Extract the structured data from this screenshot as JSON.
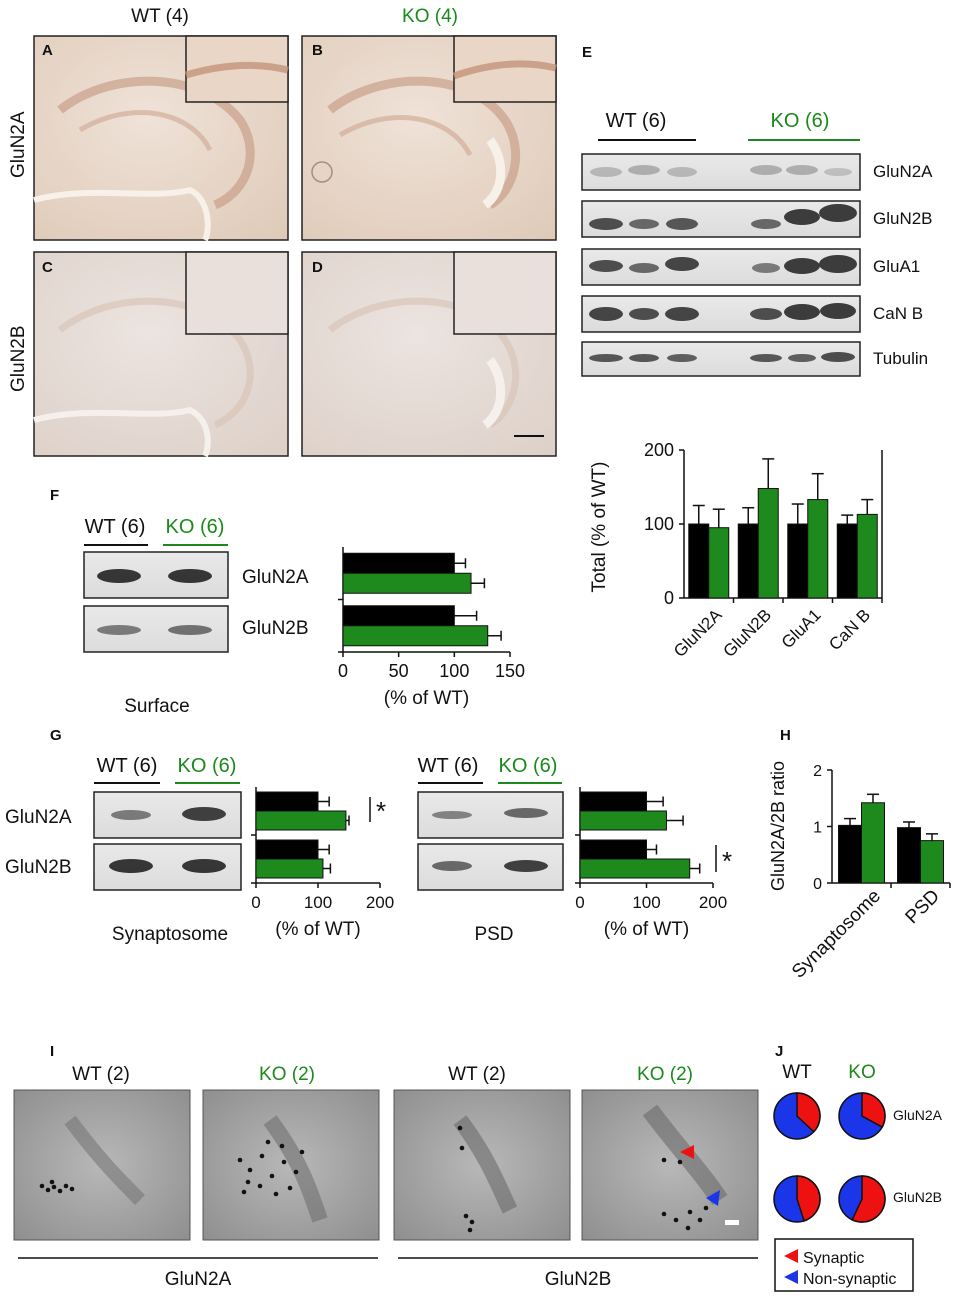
{
  "colors": {
    "wt": "#000000",
    "ko": "#1e8a1e",
    "synaptic": "#ee1111",
    "nonsynaptic": "#1a36e8",
    "tissue": "#ece0d6",
    "em": "#a8a8a8"
  },
  "panelA_D": {
    "wt_header": "WT (4)",
    "ko_header": "KO (4)",
    "row1": "GluN2A",
    "row2": "GluN2B",
    "letters": [
      "A",
      "B",
      "C",
      "D"
    ]
  },
  "panelE": {
    "letter": "E",
    "wt_header": "WT (6)",
    "ko_header": "KO (6)",
    "blots": [
      "GluN2A",
      "GluN2B",
      "GluA1",
      "CaN B",
      "Tubulin"
    ]
  },
  "panelF": {
    "letter": "F",
    "wt_header": "WT (6)",
    "ko_header": "KO (6)",
    "blots": [
      "GluN2A",
      "GluN2B"
    ],
    "caption": "Surface"
  },
  "panelG": {
    "letter": "G",
    "wt_header": "WT (6)",
    "ko_header": "KO (6)",
    "rows": [
      "GluN2A",
      "GluN2B"
    ],
    "caption_left": "Synaptosome",
    "caption_right": "PSD",
    "star": "*"
  },
  "panelH": {
    "letter": "H"
  },
  "panelI": {
    "letter": "I",
    "headers": [
      "WT (2)",
      "KO (2)",
      "WT (2)",
      "KO (2)"
    ],
    "group_left": "GluN2A",
    "group_right": "GluN2B"
  },
  "panelJ": {
    "letter": "J",
    "wt": "WT",
    "ko": "KO",
    "rows": [
      "GluN2A",
      "GluN2B"
    ],
    "legend": [
      "Synaptic",
      "Non-synaptic"
    ],
    "fractions": {
      "GluN2A": {
        "WT": 0.37,
        "KO": 0.33
      },
      "GluN2B": {
        "WT": 0.45,
        "KO": 0.57
      }
    }
  },
  "chart_data": [
    {
      "id": "E",
      "type": "bar",
      "categories": [
        "GluN2A",
        "GluN2B",
        "GluA1",
        "CaN B"
      ],
      "series": [
        {
          "name": "WT",
          "values": [
            100,
            100,
            100,
            100
          ],
          "errors": [
            25,
            22,
            27,
            12
          ]
        },
        {
          "name": "KO",
          "values": [
            95,
            148,
            133,
            113
          ],
          "errors": [
            25,
            40,
            35,
            20
          ]
        }
      ],
      "ylabel": "Total (% of WT)",
      "ylim": [
        0,
        200
      ],
      "yticks": [
        "0",
        "100",
        "200"
      ]
    },
    {
      "id": "F",
      "type": "bar",
      "orientation": "horizontal",
      "categories": [
        "GluN2A",
        "GluN2B"
      ],
      "series": [
        {
          "name": "WT",
          "values": [
            100,
            100
          ],
          "errors": [
            10,
            20
          ]
        },
        {
          "name": "KO",
          "values": [
            115,
            130
          ],
          "errors": [
            12,
            12
          ]
        }
      ],
      "xlabel": "(% of WT)",
      "xlim": [
        0,
        150
      ],
      "xticks": [
        "0",
        "50",
        "100",
        "150"
      ]
    },
    {
      "id": "G-synaptosome",
      "type": "bar",
      "orientation": "horizontal",
      "categories": [
        "GluN2A",
        "GluN2B"
      ],
      "series": [
        {
          "name": "WT",
          "values": [
            100,
            100
          ],
          "errors": [
            18,
            18
          ]
        },
        {
          "name": "KO",
          "values": [
            145,
            108
          ],
          "errors": [
            5,
            12
          ]
        }
      ],
      "xlabel": "(% of WT)",
      "xlim": [
        0,
        200
      ],
      "xticks": [
        "0",
        "100",
        "200"
      ]
    },
    {
      "id": "G-psd",
      "type": "bar",
      "orientation": "horizontal",
      "categories": [
        "GluN2A",
        "GluN2B"
      ],
      "series": [
        {
          "name": "WT",
          "values": [
            100,
            100
          ],
          "errors": [
            25,
            15
          ]
        },
        {
          "name": "KO",
          "values": [
            130,
            165
          ],
          "errors": [
            25,
            15
          ]
        }
      ],
      "xlabel": "(% of WT)",
      "xlim": [
        0,
        200
      ],
      "xticks": [
        "0",
        "100",
        "200"
      ]
    },
    {
      "id": "H",
      "type": "bar",
      "categories": [
        "Synaptosome",
        "PSD"
      ],
      "series": [
        {
          "name": "WT",
          "values": [
            1.02,
            0.98
          ],
          "errors": [
            0.12,
            0.1
          ]
        },
        {
          "name": "KO",
          "values": [
            1.42,
            0.75
          ],
          "errors": [
            0.15,
            0.12
          ]
        }
      ],
      "ylabel": "GluN2A/2B ratio",
      "ylim": [
        0,
        2
      ],
      "yticks": [
        "0",
        "1",
        "2"
      ]
    }
  ]
}
